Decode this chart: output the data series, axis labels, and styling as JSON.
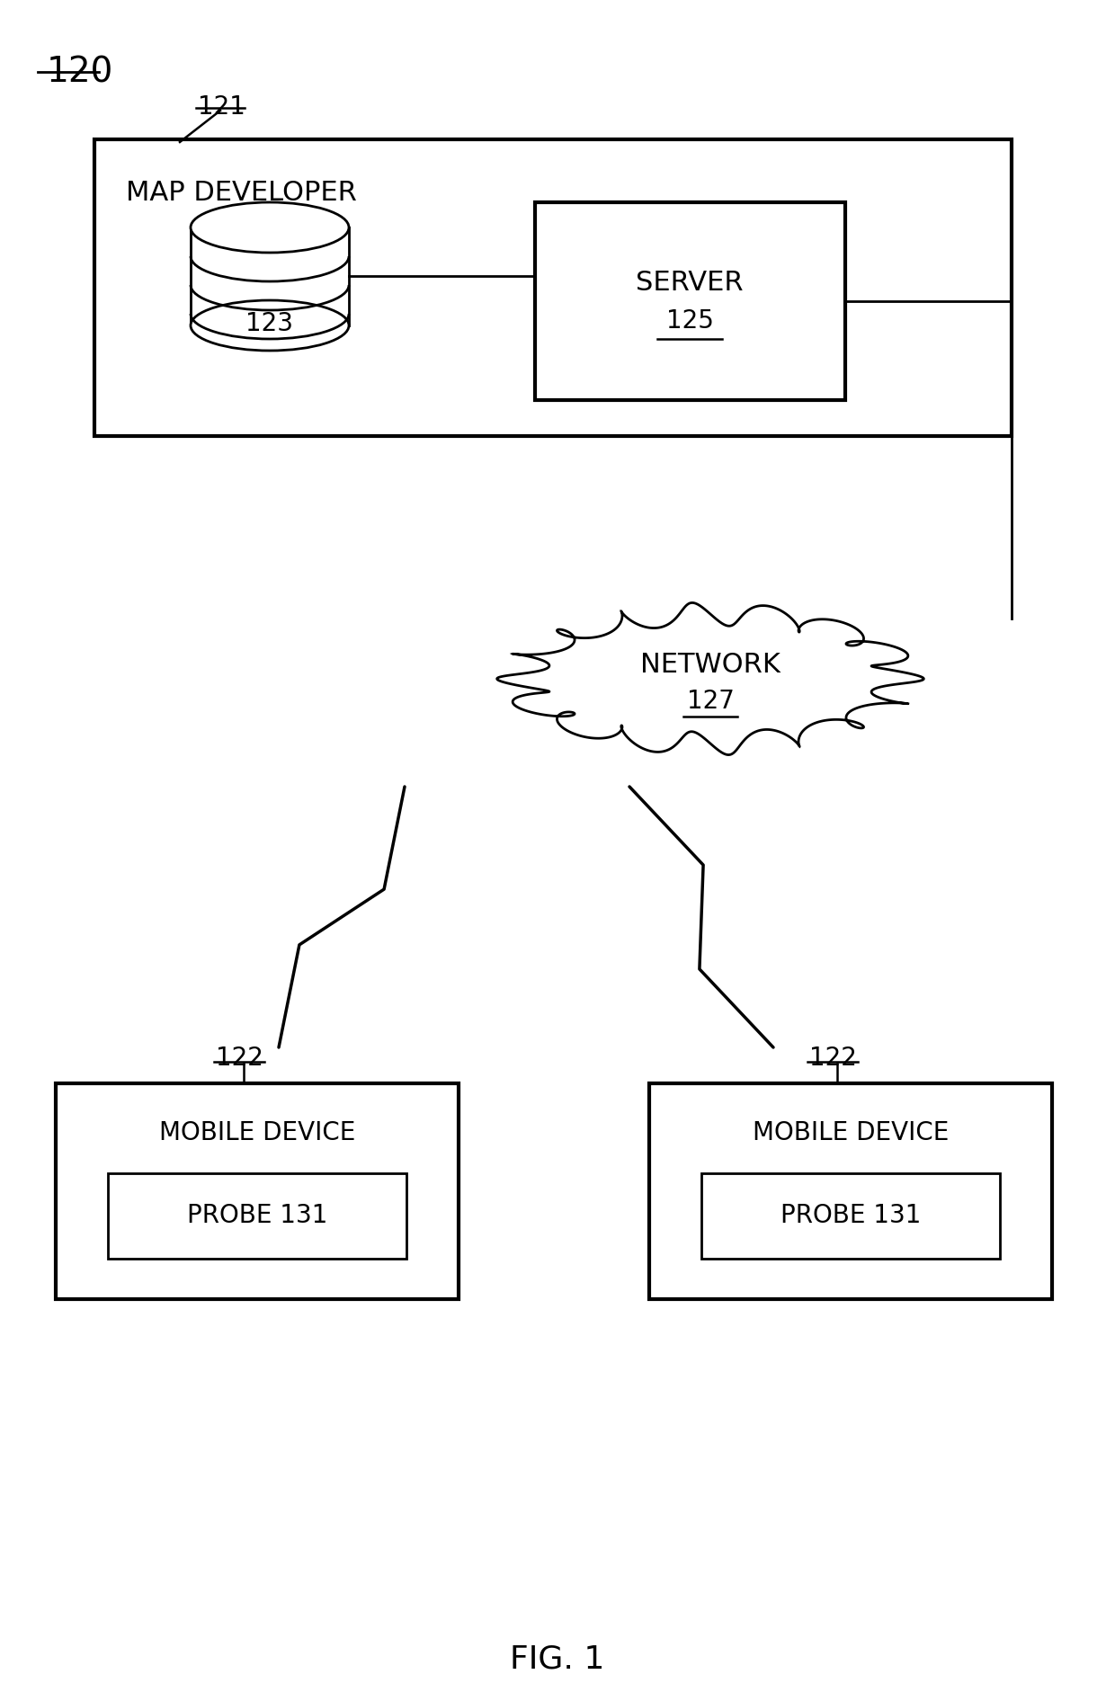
{
  "bg_color": "#ffffff",
  "fig_label": "120",
  "map_dev_label": "MAP DEVELOPER",
  "db_label": "123",
  "server_label": "SERVER",
  "server_ref": "125",
  "network_label": "NETWORK",
  "network_ref": "127",
  "mobile_label": "MOBILE DEVICE",
  "probe_label": "PROBE 131",
  "ref_121": "121",
  "ref_122": "122",
  "fig_caption": "FIG. 1",
  "lw_thick": 3.0,
  "lw_thin": 2.0,
  "fs_main": 22,
  "fs_ref": 20,
  "fs_caption": 26,
  "fs_120": 28
}
